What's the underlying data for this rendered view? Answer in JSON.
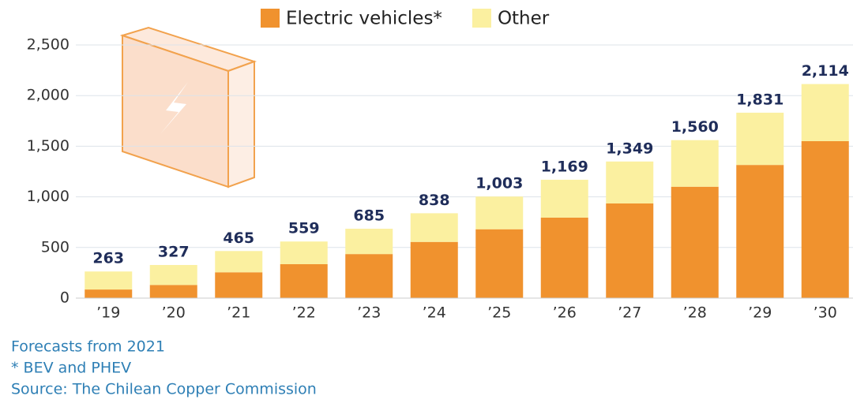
{
  "chart_data": {
    "type": "stacked_bar",
    "categories": [
      "’19",
      "’20",
      "’21",
      "’22",
      "’23",
      "’24",
      "’25",
      "’26",
      "’27",
      "’28",
      "’29",
      "’30"
    ],
    "series": [
      {
        "name": "Electric vehicles*",
        "color": "#f0922e",
        "values": [
          85,
          130,
          255,
          335,
          435,
          555,
          680,
          795,
          935,
          1100,
          1315,
          1550
        ]
      },
      {
        "name": "Other",
        "color": "#fbf0a0",
        "values": [
          178,
          197,
          210,
          224,
          250,
          283,
          323,
          374,
          414,
          460,
          516,
          564
        ]
      }
    ],
    "totals": [
      263,
      327,
      465,
      559,
      685,
      838,
      {
        "value": 1003,
        "label": "1,003"
      },
      {
        "value": 1169,
        "label": "1,169"
      },
      {
        "value": 1349,
        "label": "1,349"
      },
      {
        "value": 1560,
        "label": "1,560"
      },
      {
        "value": 1831,
        "label": "1,831"
      },
      {
        "value": 2114,
        "label": "2,114"
      }
    ],
    "ylim": [
      0,
      2500
    ],
    "yticks": [
      0,
      500,
      {
        "value": 1000,
        "label": "1,000"
      },
      {
        "value": 1500,
        "label": "1,500"
      },
      {
        "value": 2000,
        "label": "2,000"
      },
      {
        "value": 2500,
        "label": "2,500"
      }
    ],
    "grid": true,
    "notes": [
      "Forecasts from 2021",
      "* BEV and PHEV",
      "Source: The Chilean Copper Commission"
    ]
  }
}
